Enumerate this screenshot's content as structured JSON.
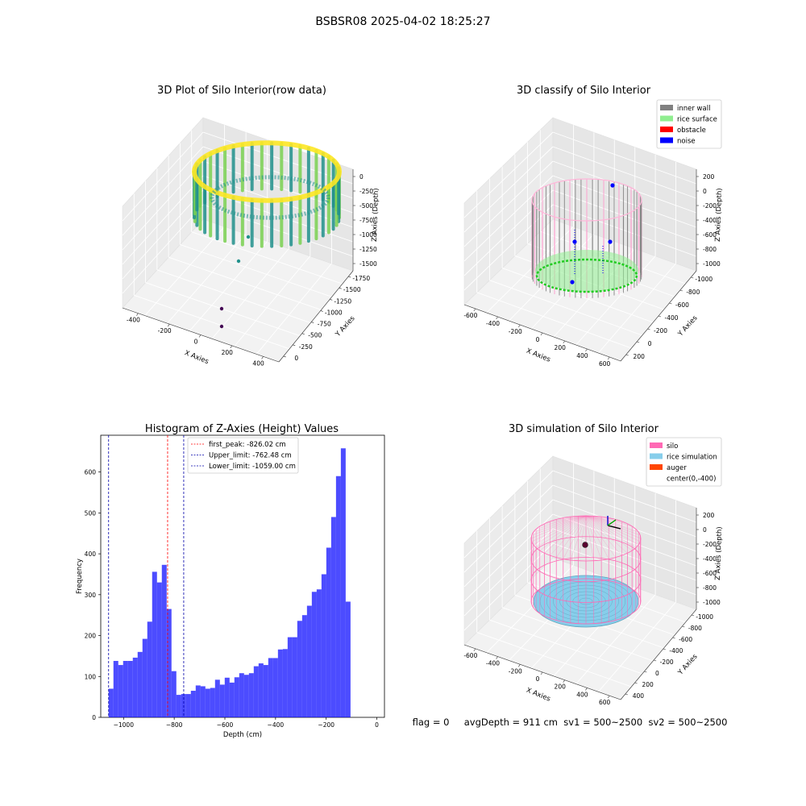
{
  "figure": {
    "suptitle": "BSBSR08 2025-04-02 18:25:27",
    "footer": "flag = 0     avgDepth = 911 cm  sv1 = 500~2500  sv2 = 500~2500"
  },
  "chart_data": [
    {
      "type": "scatter",
      "subtype": "3d",
      "title": "3D Plot of Silo Interior(row data)",
      "xlabel": "X Axies",
      "ylabel": "Y Axies",
      "zlabel": "Z Axies (Depth)",
      "x_ticks": [
        "-400",
        "-200",
        "0",
        "200",
        "400"
      ],
      "y_ticks": [
        "0",
        "-250",
        "-500",
        "-750",
        "-1000",
        "-1250",
        "-1500",
        "-1750"
      ],
      "z_ticks": [
        "0",
        "-250",
        "-500",
        "-750",
        "-1000",
        "-1250",
        "-1500"
      ],
      "xlim": [
        -500,
        500
      ],
      "ylim": [
        -1800,
        50
      ],
      "zlim": [
        -1600,
        50
      ],
      "colormap": "viridis",
      "colors": {
        "low": "#440154",
        "mid": "#21918c",
        "high": "#fde725"
      },
      "outliers": [
        {
          "x": 200,
          "y": -900,
          "z": -1250
        },
        {
          "x": 150,
          "y": -1100,
          "z": -1500
        },
        {
          "x": 300,
          "y": -700,
          "z": -1050
        }
      ]
    },
    {
      "type": "scatter",
      "subtype": "3d",
      "title": "3D classify of Silo Interior",
      "xlabel": "X Axies",
      "ylabel": "Y Axies",
      "zlabel": "Z Axies (Depth)",
      "x_ticks": [
        "-600",
        "-400",
        "-200",
        "0",
        "200",
        "400",
        "600"
      ],
      "y_ticks": [
        "200",
        "0",
        "-200",
        "-400",
        "-600",
        "-800",
        "-1000"
      ],
      "z_ticks": [
        "200",
        "0",
        "-200",
        "-400",
        "-600",
        "-800",
        "-1000"
      ],
      "legend_position": "top-right",
      "legend": [
        {
          "label": "inner wall",
          "color": "#808080"
        },
        {
          "label": "rice surface",
          "color": "#90ee90"
        },
        {
          "label": "obstacle",
          "color": "#ff0000"
        },
        {
          "label": "noise",
          "color": "#0000ff"
        }
      ]
    },
    {
      "type": "bar",
      "subtype": "histogram",
      "title": "Histogram of Z-Axies (Height) Values",
      "xlabel": "Depth (cm)",
      "ylabel": "Frequency",
      "xlim": [
        -1090,
        30
      ],
      "ylim": [
        0,
        690
      ],
      "x_ticks": [
        -1000,
        -800,
        -600,
        -400,
        -200,
        0
      ],
      "y_ticks": [
        0,
        100,
        200,
        300,
        400,
        500,
        600
      ],
      "bin_start": -1059,
      "bin_width": 19.1,
      "values": [
        70,
        138,
        128,
        138,
        138,
        146,
        160,
        192,
        234,
        356,
        330,
        373,
        265,
        113,
        55,
        57,
        57,
        65,
        78,
        76,
        70,
        72,
        92,
        80,
        97,
        85,
        98,
        108,
        104,
        108,
        125,
        132,
        128,
        145,
        145,
        166,
        167,
        196,
        196,
        236,
        250,
        273,
        307,
        313,
        350,
        415,
        490,
        590,
        658,
        283
      ],
      "color": "#0000ff",
      "reference_lines": [
        {
          "label": "first_peak: -826.02 cm",
          "value": -826.02,
          "color": "#ff0000"
        },
        {
          "label": "Upper_limit: -762.48 cm",
          "value": -762.48,
          "color": "#0000aa"
        },
        {
          "label": "Lower_limit: -1059.00 cm",
          "value": -1059.0,
          "color": "#0000aa"
        }
      ],
      "legend_position": "top-center"
    },
    {
      "type": "scatter",
      "subtype": "3d",
      "title": "3D simulation of Silo Interior",
      "xlabel": "X Axies",
      "ylabel": "Y Axies",
      "zlabel": "Z Axies (Depth)",
      "x_ticks": [
        "-600",
        "-400",
        "-200",
        "0",
        "200",
        "400",
        "600"
      ],
      "y_ticks": [
        "400",
        "200",
        "0",
        "-200",
        "-400",
        "-600",
        "-800",
        "-1000"
      ],
      "z_ticks": [
        "200",
        "0",
        "-200",
        "-400",
        "-600",
        "-800",
        "-1000"
      ],
      "legend_position": "top-right",
      "legend": [
        {
          "label": "silo",
          "color": "#ff69b4"
        },
        {
          "label": "rice simulation",
          "color": "#87ceeb"
        },
        {
          "label": "auger",
          "color": "#ff4500"
        },
        {
          "label": "center(0,-400)",
          "color": ""
        }
      ]
    }
  ]
}
